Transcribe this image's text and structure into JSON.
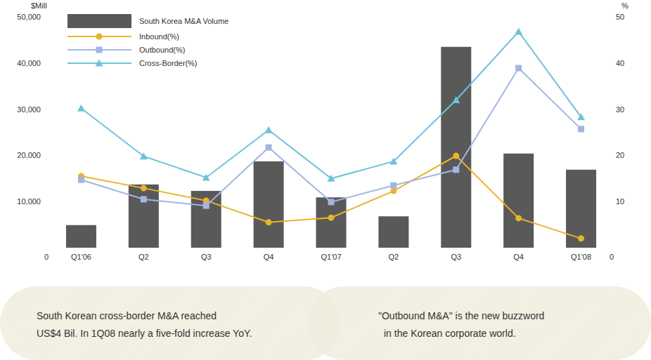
{
  "chart_data": {
    "type": "bar",
    "y_label": "$Mill",
    "y2_label": "%",
    "categories": [
      "Q1'06",
      "Q2",
      "Q3",
      "Q4",
      "Q1'07",
      "Q2",
      "Q3",
      "Q4",
      "Q1'08"
    ],
    "series": [
      {
        "name": "South Korea M&A Volume",
        "type": "bar",
        "color": "#595959",
        "values": [
          4900,
          13700,
          12300,
          18700,
          10900,
          6800,
          43500,
          20400,
          16900
        ]
      },
      {
        "name": "Inbound(%)",
        "type": "line",
        "axis": "y2",
        "marker": "circle",
        "color": "#e8b42c",
        "values": [
          15.5,
          12.9,
          10.2,
          5.5,
          6.5,
          12.3,
          19.9,
          6.4,
          2.0
        ]
      },
      {
        "name": "Outbound(%)",
        "type": "line",
        "axis": "y2",
        "marker": "square",
        "color": "#a3b5e2",
        "values": [
          14.7,
          10.5,
          9.1,
          21.7,
          9.9,
          13.5,
          16.9,
          38.9,
          25.7
        ]
      },
      {
        "name": "Cross-Border(%)",
        "type": "line",
        "axis": "y2",
        "marker": "triangle",
        "color": "#6cc2da",
        "values": [
          30.2,
          19.8,
          15.2,
          25.5,
          15.0,
          18.7,
          32.0,
          46.8,
          28.3
        ]
      }
    ],
    "ylim": [
      0,
      50000
    ],
    "yticks": [
      0,
      {
        "value": 10000,
        "label": "10,000"
      },
      {
        "value": 20000,
        "label": "20,000"
      },
      {
        "value": 30000,
        "label": "30,000"
      },
      {
        "value": 40000,
        "label": "40,000"
      },
      {
        "value": 50000,
        "label": "50,000"
      }
    ],
    "y2lim": [
      0,
      50
    ],
    "y2ticks": [
      0,
      10,
      20,
      30,
      40,
      50
    ],
    "grid": false,
    "legend": "top-left",
    "annotations": [
      {
        "lines": [
          "South Korean cross-border M&A reached",
          "US$4 Bil. In 1Q08 nearly a five-fold increase YoY."
        ]
      },
      {
        "lines": [
          "\"Outbound M&A\" is the new buzzword",
          "in the Korean corporate world."
        ]
      }
    ]
  }
}
